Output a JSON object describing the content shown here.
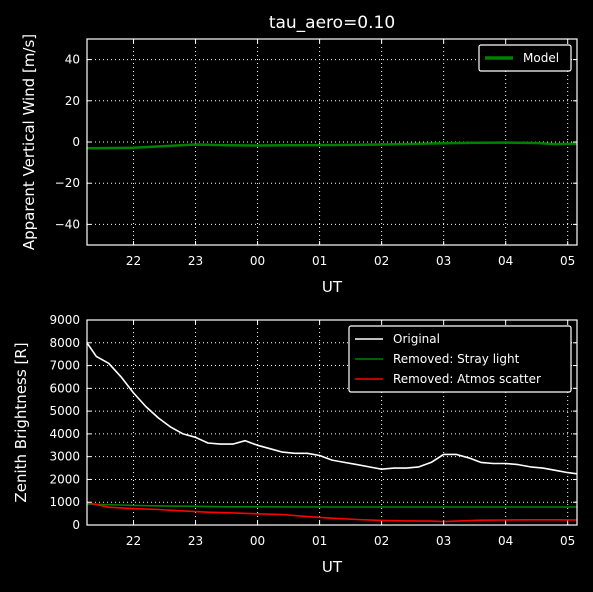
{
  "chart_data": [
    {
      "type": "line",
      "title": "tau_aero=0.10",
      "xlabel": "UT",
      "ylabel": "Apparent Vertical Wind [m/s]",
      "x_unit": "hours UT (22..05 after midnight)",
      "xlim": [
        21.25,
        29.15
      ],
      "ylim": [
        -50,
        50
      ],
      "xticks": [
        22,
        23,
        24,
        25,
        26,
        27,
        28,
        29
      ],
      "xtick_labels": [
        "22",
        "23",
        "00",
        "01",
        "02",
        "03",
        "04",
        "05"
      ],
      "yticks": [
        -40,
        -20,
        0,
        20,
        40
      ],
      "ytick_labels": [
        "−40",
        "−20",
        "0",
        "20",
        "40"
      ],
      "grid": true,
      "legend_position": "top-right",
      "series": [
        {
          "name": "Model",
          "color": "#008000",
          "x": [
            21.25,
            22.0,
            22.5,
            23.0,
            23.5,
            24.0,
            24.5,
            25.0,
            25.5,
            26.0,
            26.5,
            27.0,
            27.5,
            28.0,
            28.5,
            28.8,
            29.15
          ],
          "y": [
            -3.0,
            -2.8,
            -2.0,
            -1.2,
            -1.6,
            -1.7,
            -1.6,
            -1.5,
            -1.4,
            -1.2,
            -0.9,
            -0.6,
            -0.4,
            -0.3,
            -0.5,
            -1.0,
            -0.8
          ]
        }
      ]
    },
    {
      "type": "line",
      "title": "",
      "xlabel": "UT",
      "ylabel": "Zenith Brightness [R]",
      "xlim": [
        21.25,
        29.15
      ],
      "ylim": [
        0,
        9000
      ],
      "xticks": [
        22,
        23,
        24,
        25,
        26,
        27,
        28,
        29
      ],
      "xtick_labels": [
        "22",
        "23",
        "00",
        "01",
        "02",
        "03",
        "04",
        "05"
      ],
      "yticks": [
        0,
        1000,
        2000,
        3000,
        4000,
        5000,
        6000,
        7000,
        8000,
        9000
      ],
      "ytick_labels": [
        "0",
        "1000",
        "2000",
        "3000",
        "4000",
        "5000",
        "6000",
        "7000",
        "8000",
        "9000"
      ],
      "grid": true,
      "legend_position": "top-right",
      "series": [
        {
          "name": "Original",
          "color": "#ffffff",
          "x": [
            21.25,
            21.4,
            21.6,
            21.8,
            22.0,
            22.2,
            22.4,
            22.6,
            22.8,
            23.0,
            23.2,
            23.4,
            23.6,
            23.8,
            24.0,
            24.2,
            24.4,
            24.6,
            24.8,
            25.0,
            25.2,
            25.4,
            25.6,
            25.8,
            26.0,
            26.2,
            26.4,
            26.6,
            26.8,
            27.0,
            27.2,
            27.4,
            27.6,
            27.8,
            28.0,
            28.2,
            28.4,
            28.6,
            28.8,
            29.0,
            29.15
          ],
          "y": [
            8000,
            7400,
            7100,
            6500,
            5800,
            5200,
            4700,
            4300,
            4000,
            3850,
            3600,
            3550,
            3550,
            3700,
            3500,
            3350,
            3200,
            3150,
            3150,
            3050,
            2850,
            2750,
            2650,
            2550,
            2450,
            2500,
            2500,
            2550,
            2750,
            3100,
            3100,
            2950,
            2750,
            2700,
            2700,
            2650,
            2550,
            2500,
            2400,
            2300,
            2250
          ]
        },
        {
          "name": "Removed: Stray light",
          "color": "#008000",
          "x": [
            21.25,
            21.5,
            22.0,
            22.5,
            23.0,
            23.5,
            24.0,
            25.0,
            26.0,
            27.0,
            28.0,
            29.0,
            29.15
          ],
          "y": [
            920,
            900,
            860,
            830,
            820,
            800,
            800,
            790,
            790,
            790,
            790,
            790,
            790
          ]
        },
        {
          "name": "Removed: Atmos scatter",
          "color": "#ff0000",
          "x": [
            21.25,
            21.4,
            21.6,
            22.0,
            22.4,
            22.8,
            23.2,
            23.6,
            24.0,
            24.4,
            24.8,
            25.2,
            25.6,
            26.0,
            26.4,
            26.8,
            27.0,
            27.2,
            27.6,
            28.0,
            28.4,
            28.8,
            29.15
          ],
          "y": [
            980,
            900,
            780,
            720,
            680,
            620,
            560,
            530,
            490,
            460,
            370,
            300,
            240,
            200,
            180,
            170,
            150,
            170,
            210,
            220,
            230,
            230,
            220
          ]
        }
      ]
    }
  ]
}
